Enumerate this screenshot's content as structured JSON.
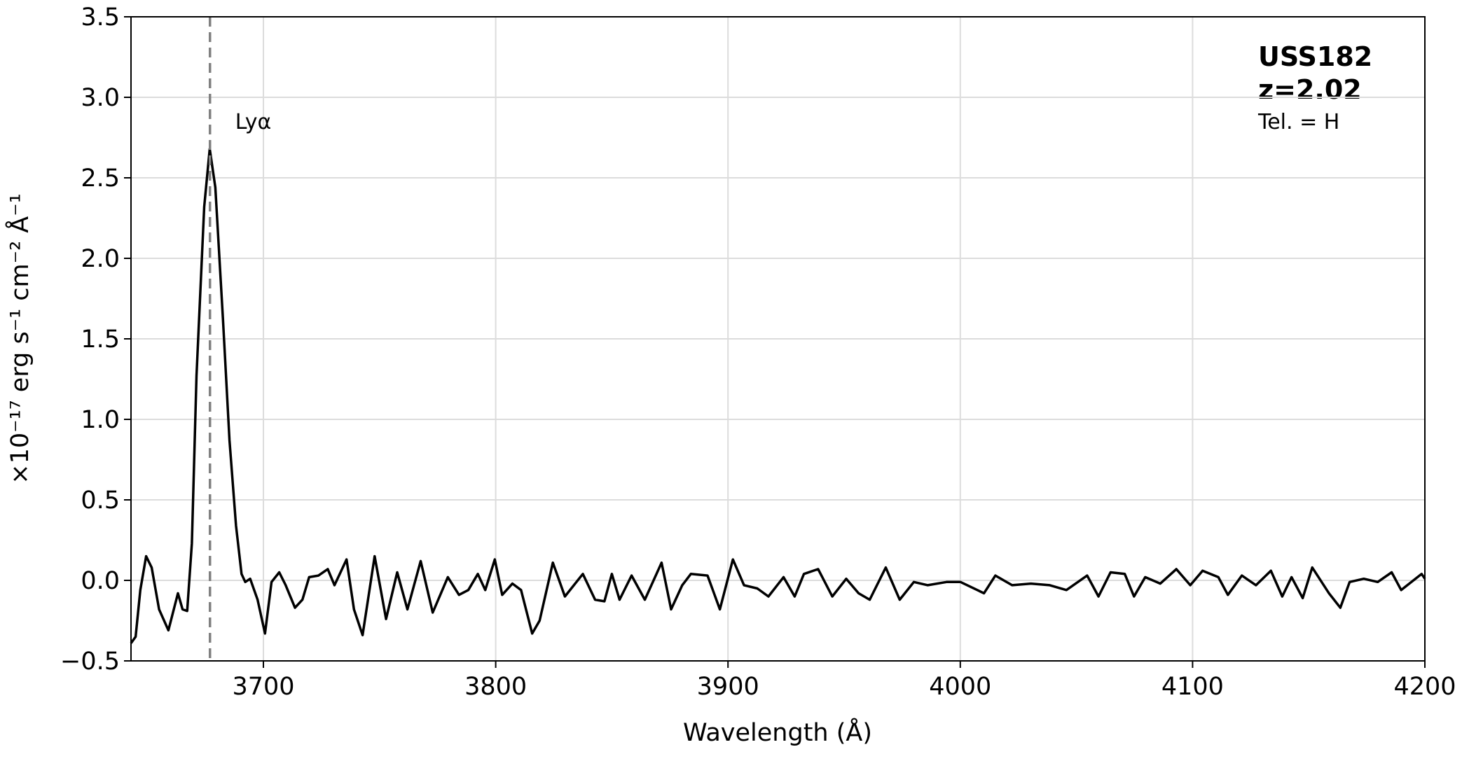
{
  "chart_data": {
    "type": "line",
    "x_label": "Wavelength (Å)",
    "y_label": "×10⁻¹⁷ erg s⁻¹ cm⁻² Å⁻¹",
    "object_name": "USS182",
    "redshift_label": "z=2.02",
    "telescope_label": "Tel. = H",
    "line_marker": {
      "x": 3677,
      "label": "Lyα",
      "color": "#808080"
    },
    "xlim": [
      3643,
      4200
    ],
    "ylim": [
      -0.5,
      3.5
    ],
    "xticks": [
      3700,
      3800,
      3900,
      4000,
      4100,
      4200
    ],
    "yticks": [
      {
        "value": -0.5,
        "label": "−0.5"
      },
      {
        "value": 0,
        "label": "0.0"
      },
      0.5,
      {
        "value": 1,
        "label": "1.0"
      },
      1.5,
      {
        "value": 2,
        "label": "2.0"
      },
      2.5,
      {
        "value": 3,
        "label": "3.0"
      },
      3.5
    ],
    "grid": true,
    "series": [
      {
        "name": "USS182",
        "color": "#000000",
        "x": [
          3643.0,
          3645.0,
          3647.0,
          3649.5,
          3651.9,
          3655.1,
          3659.1,
          3663.2,
          3665.2,
          3667.2,
          3669.2,
          3671.2,
          3674.5,
          3676.9,
          3679.3,
          3682.6,
          3685.4,
          3688.2,
          3690.6,
          3692.2,
          3694.3,
          3697.5,
          3700.7,
          3703.5,
          3706.8,
          3709.6,
          3713.6,
          3716.8,
          3719.7,
          3723.7,
          3727.7,
          3730.6,
          3735.8,
          3739.0,
          3742.7,
          3747.9,
          3752.8,
          3757.6,
          3762.0,
          3767.7,
          3772.9,
          3779.4,
          3784.2,
          3788.2,
          3792.3,
          3795.5,
          3799.6,
          3802.8,
          3807.2,
          3810.9,
          3815.7,
          3818.9,
          3824.6,
          3829.8,
          3837.5,
          3842.8,
          3846.8,
          3850.0,
          3853.3,
          3858.5,
          3864.2,
          3871.4,
          3875.5,
          3880.3,
          3884.0,
          3891.2,
          3896.5,
          3902.1,
          3906.9,
          3912.6,
          3917.4,
          3923.9,
          3928.7,
          3932.7,
          3938.8,
          3944.9,
          3950.9,
          3956.2,
          3961.0,
          3967.9,
          3973.9,
          3980.0,
          3986.0,
          3994.1,
          4000.1,
          4010.2,
          4015.1,
          4022.3,
          4030.4,
          4038.5,
          4045.7,
          4054.6,
          4059.5,
          4064.7,
          4070.8,
          4074.8,
          4079.6,
          4086.1,
          4093.0,
          4099.0,
          4104.3,
          4111.1,
          4115.2,
          4121.2,
          4127.3,
          4133.7,
          4138.6,
          4142.6,
          4147.4,
          4151.5,
          4158.7,
          4163.6,
          4167.6,
          4173.7,
          4179.7,
          4185.7,
          4189.8,
          4194.2,
          4198.6,
          4200
        ],
        "values": [
          -0.39,
          -0.35,
          -0.06,
          0.15,
          0.08,
          -0.18,
          -0.31,
          -0.08,
          -0.18,
          -0.19,
          0.23,
          1.27,
          2.32,
          2.68,
          2.44,
          1.62,
          0.87,
          0.34,
          0.04,
          -0.01,
          0.01,
          -0.12,
          -0.33,
          -0.01,
          0.05,
          -0.03,
          -0.17,
          -0.12,
          0.02,
          0.03,
          0.07,
          -0.03,
          0.13,
          -0.18,
          -0.34,
          0.15,
          -0.24,
          0.05,
          -0.18,
          0.12,
          -0.2,
          0.02,
          -0.09,
          -0.06,
          0.04,
          -0.06,
          0.13,
          -0.09,
          -0.02,
          -0.06,
          -0.33,
          -0.25,
          0.11,
          -0.1,
          0.04,
          -0.12,
          -0.13,
          0.04,
          -0.12,
          0.03,
          -0.12,
          0.11,
          -0.18,
          -0.03,
          0.04,
          0.03,
          -0.18,
          0.13,
          -0.03,
          -0.05,
          -0.1,
          0.02,
          -0.1,
          0.04,
          0.07,
          -0.1,
          0.01,
          -0.08,
          -0.12,
          0.08,
          -0.12,
          -0.01,
          -0.03,
          -0.01,
          -0.01,
          -0.08,
          0.03,
          -0.03,
          -0.02,
          -0.03,
          -0.06,
          0.03,
          -0.1,
          0.05,
          0.04,
          -0.1,
          0.02,
          -0.02,
          0.07,
          -0.03,
          0.06,
          0.02,
          -0.09,
          0.03,
          -0.03,
          0.06,
          -0.1,
          0.02,
          -0.11,
          0.08,
          -0.08,
          -0.17,
          -0.01,
          0.01,
          -0.01,
          0.05,
          -0.06,
          -0.01,
          0.04,
          0.01
        ]
      }
    ]
  }
}
